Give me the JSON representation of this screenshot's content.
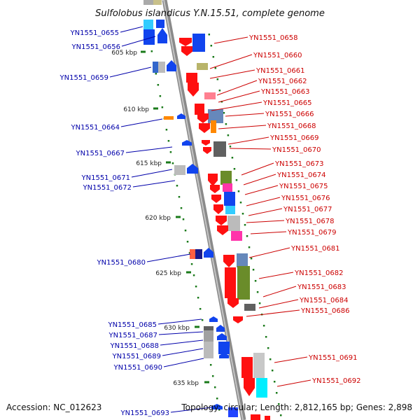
{
  "title": "Sulfolobus islandicus Y.N.15.51, complete genome",
  "footer": {
    "accession": "Accession: NC_012623",
    "summary": "Topology: circular; Length: 2,812,165 bp; Genes: 2,898"
  },
  "colors": {
    "forward_label": "#cc0000",
    "reverse_label": "#0000aa",
    "backbone": "#8a8a8a",
    "tick": "#1a7a1a"
  },
  "kbp_ticks": [
    "605 kbp",
    "610 kbp",
    "615 kbp",
    "620 kbp",
    "625 kbp",
    "630 kbp",
    "635 kbp"
  ],
  "reverse_genes": [
    "YN1551_0655",
    "YN1551_0656",
    "YN1551_0659",
    "YN1551_0664",
    "YN1551_0667",
    "YN1551_0671",
    "YN1551_0672",
    "YN1551_0680",
    "YN1551_0685",
    "YN1551_0687",
    "YN1551_0688",
    "YN1551_0689",
    "YN1551_0690",
    "YN1551_0693"
  ],
  "forward_genes": [
    "YN1551_0658",
    "YN1551_0660",
    "YN1551_0661",
    "YN1551_0662",
    "YN1551_0663",
    "YN1551_0665",
    "YN1551_0666",
    "YN1551_0668",
    "YN1551_0669",
    "YN1551_0670",
    "YN1551_0673",
    "YN1551_0674",
    "YN1551_0675",
    "YN1551_0676",
    "YN1551_0677",
    "YN1551_0678",
    "YN1551_0679",
    "YN1551_0681",
    "YN1551_0682",
    "YN1551_0683",
    "YN1551_0684",
    "YN1551_0686",
    "YN1551_0691",
    "YN1551_0692"
  ]
}
